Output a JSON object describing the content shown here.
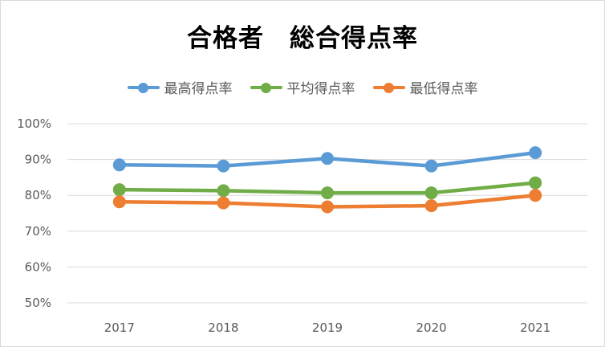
{
  "chart_data": {
    "type": "line",
    "title": "合格者　総合得点率",
    "categories": [
      "2017",
      "2018",
      "2019",
      "2020",
      "2021"
    ],
    "ylim": [
      0.5,
      1.0
    ],
    "yticks": [
      "50%",
      "60%",
      "70%",
      "80%",
      "90%",
      "100%"
    ],
    "ytick_values": [
      0.5,
      0.6,
      0.7,
      0.8,
      0.9,
      1.0
    ],
    "grid": true,
    "legend_position": "top",
    "series": [
      {
        "name": "最高得点率",
        "color": "#5b9bd5",
        "values": [
          0.885,
          0.882,
          0.903,
          0.882,
          0.919
        ]
      },
      {
        "name": "平均得点率",
        "color": "#70ad47",
        "values": [
          0.816,
          0.813,
          0.807,
          0.807,
          0.835
        ]
      },
      {
        "name": "最低得点率",
        "color": "#ed7d31",
        "values": [
          0.782,
          0.779,
          0.768,
          0.771,
          0.8
        ]
      }
    ]
  }
}
